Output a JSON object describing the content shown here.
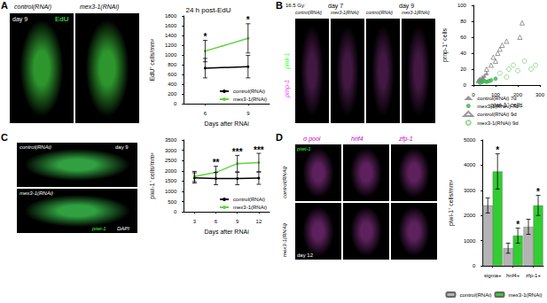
{
  "figure_panels": [
    {
      "label": "A",
      "day": "day 9",
      "stain": "EdU",
      "conditions": [
        "control(RNAi)",
        "mex3-1(RNAi)"
      ]
    },
    {
      "label": "B",
      "dose": "16.5 Gy:",
      "days": [
        "day 7",
        "day 9"
      ],
      "stain": [
        "prnp-1",
        "piwi-1"
      ],
      "conditions": [
        "control(RNAi)",
        "mex3-1(RNAi)",
        "control(RNAi)",
        "mex3-1(RNAi)"
      ]
    },
    {
      "label": "C",
      "day": "day 9",
      "stain": [
        "piwi-1",
        "DAPI"
      ],
      "conditions": [
        "control(RNAi)",
        "mex3-1(RNAi)"
      ]
    },
    {
      "label": "D",
      "day": "day 12",
      "stain": "piwi-1",
      "probes": [
        "σ pool",
        "hnf4",
        "zfp-1"
      ],
      "conditions": [
        "control(RNAi)",
        "mex3-1(RNAi)"
      ]
    }
  ],
  "chart_data": [
    {
      "type": "line",
      "title": "24 h post-EdU",
      "x_label": "Days after RNAi",
      "y_label": "EdU⁺ cells/mm²",
      "categories": [
        "6",
        "9"
      ],
      "ylim": [
        0,
        1800
      ],
      "yticks": [
        0,
        200,
        400,
        600,
        800,
        1000,
        1200,
        1400,
        1600,
        1800
      ],
      "grid": false,
      "legend": "bottom-right",
      "series": [
        {
          "name": "control(RNAi)",
          "color": "#000000",
          "values": [
            730,
            760
          ],
          "error": [
            200,
            230
          ]
        },
        {
          "name": "mex3-1(RNAi)",
          "color": "#5ed640",
          "values": [
            1080,
            1340
          ],
          "error": [
            220,
            300
          ],
          "significance": [
            "*",
            "*"
          ]
        }
      ]
    },
    {
      "type": "scatter",
      "x_label": "piwi-1⁺ cells",
      "y_label": "prnp-1⁺ cells",
      "xlim": [
        0,
        300
      ],
      "xticks": [
        0,
        100,
        200,
        300
      ],
      "ylim": [
        0,
        100
      ],
      "yticks": [
        0,
        20,
        40,
        60,
        80,
        100
      ],
      "grid": false,
      "legend": "bottom",
      "series": [
        {
          "name": "control(RNAi) 7d",
          "color": "#808080",
          "marker": "triangle",
          "x": [
            20,
            25,
            30,
            35,
            40,
            45,
            50,
            60
          ],
          "values": [
            5,
            7,
            8,
            6,
            10,
            9,
            12,
            15
          ]
        },
        {
          "name": "mex3-1(RNAi) 7d",
          "color": "#3cb44b",
          "marker": "circle",
          "x": [
            30,
            40,
            50,
            60,
            70,
            80,
            100
          ],
          "values": [
            3,
            4,
            5,
            4,
            5,
            6,
            8
          ]
        },
        {
          "name": "control(RNAi) 9d",
          "color": "#808080",
          "marker": "triangle_open",
          "x": [
            60,
            80,
            90,
            100,
            110,
            120,
            130,
            150,
            210,
            220
          ],
          "values": [
            20,
            25,
            35,
            30,
            40,
            45,
            50,
            55,
            60,
            78
          ]
        },
        {
          "name": "mex3-1(RNAi) 9d",
          "color": "#7fd47f",
          "marker": "circle_open",
          "x": [
            120,
            150,
            160,
            180,
            200,
            230,
            260,
            280
          ],
          "values": [
            15,
            10,
            20,
            25,
            18,
            30,
            20,
            25
          ]
        }
      ]
    },
    {
      "type": "line",
      "x_label": "Days after RNAi",
      "y_label": "piwi-1⁺ cells/mm²",
      "categories": [
        "3",
        "6",
        "9",
        "12"
      ],
      "ylim": [
        0,
        3500
      ],
      "yticks": [
        0,
        500,
        1000,
        1500,
        2000,
        2500,
        3000,
        3500
      ],
      "grid": false,
      "legend": "bottom-right",
      "series": [
        {
          "name": "control(RNAi)",
          "color": "#000000",
          "values": [
            1650,
            1620,
            1620,
            1640
          ],
          "error": [
            250,
            300,
            300,
            300
          ]
        },
        {
          "name": "mex3-1(RNAi)",
          "color": "#5ed640",
          "values": [
            1720,
            1920,
            2350,
            2400
          ],
          "error": [
            250,
            300,
            400,
            450
          ],
          "significance": [
            null,
            "**",
            "***",
            "***"
          ]
        }
      ]
    },
    {
      "type": "bar",
      "y_label": "piwi-1⁺ cells/mm²",
      "categories": [
        "sigma+",
        "hnf4+",
        "zfp-1+"
      ],
      "ylim": [
        0,
        5000
      ],
      "yticks": [
        0,
        1000,
        2000,
        3000,
        4000,
        5000
      ],
      "grid": false,
      "legend": "bottom",
      "series": [
        {
          "name": "control(RNAi)",
          "color": "#b3b3b3",
          "values": [
            2400,
            700,
            1550
          ],
          "error": [
            300,
            200,
            300
          ]
        },
        {
          "name": "mex3-1(RNAi)",
          "color": "#33cc33",
          "values": [
            3750,
            1200,
            2400
          ],
          "error": [
            700,
            300,
            400
          ],
          "significance": [
            "*",
            "*",
            "*"
          ]
        }
      ]
    }
  ]
}
